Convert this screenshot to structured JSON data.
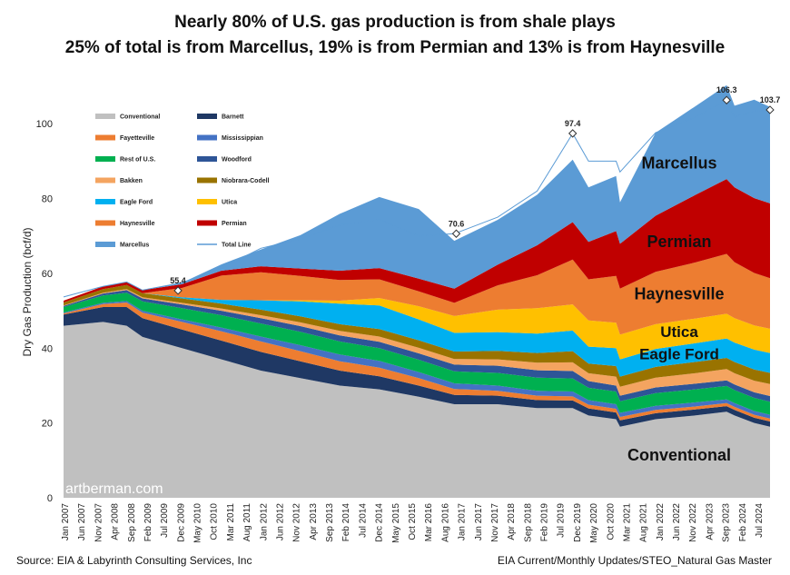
{
  "title": "Nearly 80% of U.S. gas production is from shale plays",
  "subtitle": "25% of total is from Marcellus, 19% is from Permian and 13% is from Haynesville",
  "footer_left": "Source: EIA & Labyrinth Consulting Services, Inc",
  "footer_right": "EIA Current/Monthly Updates/STEO_Natural Gas Master",
  "watermark": "artberman.com",
  "chart_data": {
    "type": "area",
    "stacked": true,
    "ylabel": "Dry Gas Production (bcf/d)",
    "ylim": [
      0,
      110
    ],
    "yticks": [
      0,
      20,
      40,
      60,
      80,
      100
    ],
    "x": [
      2007.0,
      2008.0,
      2008.6,
      2009.0,
      2010.0,
      2011.0,
      2012.0,
      2013.0,
      2014.0,
      2015.0,
      2016.0,
      2016.9,
      2018.0,
      2019.0,
      2019.9,
      2020.3,
      2021.0,
      2021.1,
      2022.0,
      2023.0,
      2023.8,
      2024.0,
      2024.5,
      2024.9
    ],
    "xticks": [
      "Jan 2007",
      "Jun 2007",
      "Nov 2007",
      "Apr 2008",
      "Sep 2008",
      "Feb 2009",
      "Jul 2009",
      "Dec 2009",
      "May 2010",
      "Oct 2010",
      "Mar 2011",
      "Aug 2011",
      "Jan 2012",
      "Jun 2012",
      "Nov 2012",
      "Apr 2013",
      "Sep 2013",
      "Feb 2014",
      "Jul 2014",
      "Dec 2014",
      "May 2015",
      "Oct 2015",
      "Mar 2016",
      "Aug 2016",
      "Jan 2017",
      "Jun 2017",
      "Nov 2017",
      "Apr 2018",
      "Sep 2018",
      "Feb 2019",
      "Jul 2019",
      "Dec 2019",
      "May 2020",
      "Oct 2020",
      "Mar 2021",
      "Aug 2021",
      "Jan 2022",
      "Jun 2022",
      "Nov 2022",
      "Apr 2023",
      "Sep 2023",
      "Feb 2024",
      "Jul 2024"
    ],
    "legend": [
      {
        "name": "Conventional",
        "color": "#c0c0c0"
      },
      {
        "name": "Barnett",
        "color": "#1f3864"
      },
      {
        "name": "Fayetteville",
        "color": "#ed7d31"
      },
      {
        "name": "Mississippian",
        "color": "#4472c4"
      },
      {
        "name": "Rest of U.S.",
        "color": "#00b050"
      },
      {
        "name": "Woodford",
        "color": "#2e5597"
      },
      {
        "name": "Bakken",
        "color": "#f4a460"
      },
      {
        "name": "Niobrara-Codell",
        "color": "#997300"
      },
      {
        "name": "Eagle Ford",
        "color": "#00b0f0"
      },
      {
        "name": "Utica",
        "color": "#ffc000"
      },
      {
        "name": "Haynesville",
        "color": "#ed7d31"
      },
      {
        "name": "Permian",
        "color": "#c00000"
      },
      {
        "name": "Marcellus",
        "color": "#5b9bd5"
      },
      {
        "name": "Total Line",
        "color": "#5b9bd5"
      }
    ],
    "series": [
      {
        "name": "Conventional",
        "color": "#c0c0c0",
        "values": [
          46,
          47,
          46,
          43,
          40,
          37,
          34,
          32,
          30,
          29,
          27,
          25,
          25,
          24,
          24,
          22,
          21,
          19,
          21,
          22,
          23,
          22,
          20,
          19
        ]
      },
      {
        "name": "Barnett",
        "color": "#1f3864",
        "values": [
          3,
          4,
          5,
          5,
          5,
          5,
          5,
          4.5,
          4,
          3.5,
          3,
          2.5,
          2.3,
          2.1,
          2,
          1.9,
          1.8,
          1.7,
          1.6,
          1.6,
          1.5,
          1.5,
          1.4,
          1.4
        ]
      },
      {
        "name": "Fayetteville",
        "color": "#ed7d31",
        "values": [
          0.3,
          0.8,
          1.2,
          1.5,
          2,
          2.5,
          2.8,
          2.7,
          2.5,
          2.3,
          2,
          1.6,
          1.3,
          1.2,
          1.1,
          1,
          1,
          0.9,
          0.9,
          0.8,
          0.8,
          0.8,
          0.8,
          0.8
        ]
      },
      {
        "name": "Mississippian",
        "color": "#4472c4",
        "values": [
          0.2,
          0.3,
          0.4,
          0.5,
          0.7,
          1,
          1.3,
          1.6,
          1.8,
          1.8,
          1.6,
          1.5,
          1.4,
          1.3,
          1.3,
          1.2,
          1.2,
          1.1,
          1.1,
          1.1,
          1,
          1,
          1,
          1
        ]
      },
      {
        "name": "Rest of U.S.",
        "color": "#00b050",
        "values": [
          1.5,
          2,
          2.2,
          2.5,
          3,
          3.3,
          3.5,
          3.6,
          3.5,
          3.4,
          3.3,
          3.2,
          3.4,
          3.5,
          3.5,
          3.3,
          3.4,
          3.1,
          3.4,
          3.5,
          3.6,
          3.5,
          3.5,
          3.5
        ]
      },
      {
        "name": "Woodford",
        "color": "#2e5597",
        "values": [
          0.3,
          0.5,
          0.7,
          0.8,
          1,
          1.2,
          1.4,
          1.5,
          1.6,
          1.7,
          1.7,
          1.8,
          1.9,
          2,
          2,
          1.8,
          1.6,
          1.5,
          1.5,
          1.5,
          1.5,
          1.5,
          1.5,
          1.5
        ]
      },
      {
        "name": "Bakken",
        "color": "#f4a460",
        "values": [
          0.1,
          0.2,
          0.3,
          0.3,
          0.4,
          0.6,
          0.8,
          1,
          1.2,
          1.4,
          1.5,
          1.5,
          1.7,
          2,
          2.3,
          2.1,
          2.4,
          2.4,
          2.6,
          2.8,
          3,
          3,
          3.1,
          3.2
        ]
      },
      {
        "name": "Niobrara-Codell",
        "color": "#997300",
        "values": [
          0.8,
          1,
          1.1,
          1.1,
          1.2,
          1.3,
          1.5,
          1.6,
          1.8,
          2,
          2,
          2,
          2.3,
          2.6,
          3,
          2.6,
          2.8,
          2.7,
          2.9,
          3,
          3,
          3,
          3,
          3
        ]
      },
      {
        "name": "Eagle Ford",
        "color": "#00b0f0",
        "values": [
          0,
          0,
          0,
          0,
          0.3,
          1,
          2.5,
          4,
          5.5,
          6.3,
          5.6,
          5,
          5,
          5.2,
          5.5,
          4.5,
          4.8,
          4.6,
          4.8,
          5,
          5.2,
          5.2,
          5.3,
          5.3
        ]
      },
      {
        "name": "Utica",
        "color": "#ffc000",
        "values": [
          0,
          0,
          0,
          0,
          0,
          0,
          0,
          0.3,
          0.8,
          2,
          3.5,
          4.5,
          6,
          6.8,
          7,
          7,
          6.8,
          6.6,
          6.6,
          6.6,
          6.6,
          6.5,
          6.5,
          6.5
        ]
      },
      {
        "name": "Haynesville",
        "color": "#ed7d31",
        "values": [
          0,
          0,
          0,
          0,
          2.5,
          6.5,
          7.5,
          6.5,
          5.5,
          5,
          4,
          3.5,
          6.5,
          8.8,
          12,
          11,
          12.5,
          12.3,
          14,
          15,
          16,
          15,
          14,
          13.5
        ]
      },
      {
        "name": "Permian",
        "color": "#c00000",
        "values": [
          0.5,
          0.7,
          0.8,
          0.8,
          1,
          1.3,
          1.6,
          2,
          2.5,
          3,
          3.4,
          3.8,
          5.5,
          8,
          10,
          10,
          12,
          12,
          15,
          18,
          20,
          20,
          20,
          20
        ]
      },
      {
        "name": "Marcellus",
        "color": "#5b9bd5",
        "values": [
          0,
          0,
          0,
          0,
          0.4,
          1.7,
          4.5,
          8.9,
          15.2,
          19,
          18.6,
          12.8,
          12,
          13.5,
          16.7,
          14.6,
          14.7,
          11.1,
          22.2,
          23.7,
          25.1,
          21.8,
          26.3,
          25.8
        ]
      }
    ],
    "total_line": [
      53.7,
      56.5,
      57.7,
      55.5,
      57.5,
      61.4,
      66.7,
      69.2,
      72.9,
      74.4,
      70.0,
      70.6,
      75.0,
      82.0,
      97.4,
      90.0,
      90.0,
      87.1,
      97.6,
      101.7,
      106.3,
      101.8,
      103.4,
      103.7
    ],
    "callouts": [
      {
        "x": 2009.9,
        "label": "55.4",
        "value": 55.4
      },
      {
        "x": 2016.95,
        "label": "70.6",
        "value": 70.6
      },
      {
        "x": 2019.9,
        "label": "97.4",
        "value": 97.4
      },
      {
        "x": 2023.8,
        "label": "106.3",
        "value": 106.3
      },
      {
        "x": 2024.9,
        "label": "103.7",
        "value": 103.7
      }
    ],
    "segment_labels": [
      {
        "text": "Marcellus",
        "x": 2022.6,
        "y": 88
      },
      {
        "text": "Permian",
        "x": 2022.6,
        "y": 67
      },
      {
        "text": "Haynesville",
        "x": 2022.6,
        "y": 53
      },
      {
        "text": "Utica",
        "x": 2022.6,
        "y": 43
      },
      {
        "text": "Eagle Ford",
        "x": 2022.6,
        "y": 37
      },
      {
        "text": "Conventional",
        "x": 2022.6,
        "y": 10
      }
    ]
  }
}
